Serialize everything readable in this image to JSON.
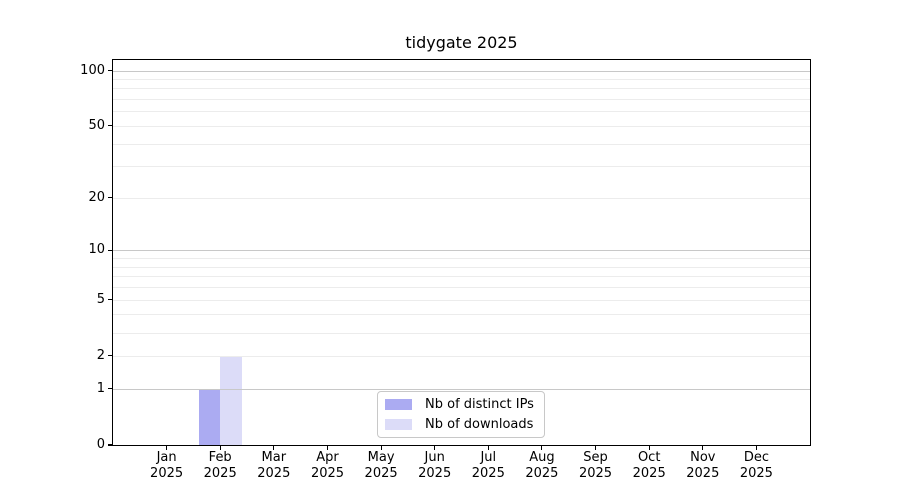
{
  "title": "tidygate 2025",
  "chart_data": {
    "type": "bar",
    "title": "tidygate 2025",
    "year": "2025",
    "months": [
      "Jan",
      "Feb",
      "Mar",
      "Apr",
      "May",
      "Jun",
      "Jul",
      "Aug",
      "Sep",
      "Oct",
      "Nov",
      "Dec"
    ],
    "series": [
      {
        "name": "Nb of distinct IPs",
        "color": "#ababf2",
        "values": [
          0,
          1,
          0,
          0,
          0,
          0,
          0,
          0,
          0,
          0,
          0,
          0
        ]
      },
      {
        "name": "Nb of downloads",
        "color": "#dcdcf8",
        "values": [
          0,
          2,
          0,
          0,
          0,
          0,
          0,
          0,
          0,
          0,
          0,
          0
        ]
      }
    ],
    "yscale": "log1p",
    "ylim": [
      0,
      100
    ],
    "yticks": [
      0,
      1,
      2,
      5,
      10,
      20,
      50,
      100
    ],
    "major_gridlines": [
      1,
      10,
      100
    ],
    "minor_gridlines": [
      2,
      3,
      4,
      5,
      6,
      7,
      8,
      9,
      20,
      30,
      40,
      50,
      60,
      70,
      80,
      90
    ],
    "legend_position": "bottom-center",
    "grid": true
  }
}
